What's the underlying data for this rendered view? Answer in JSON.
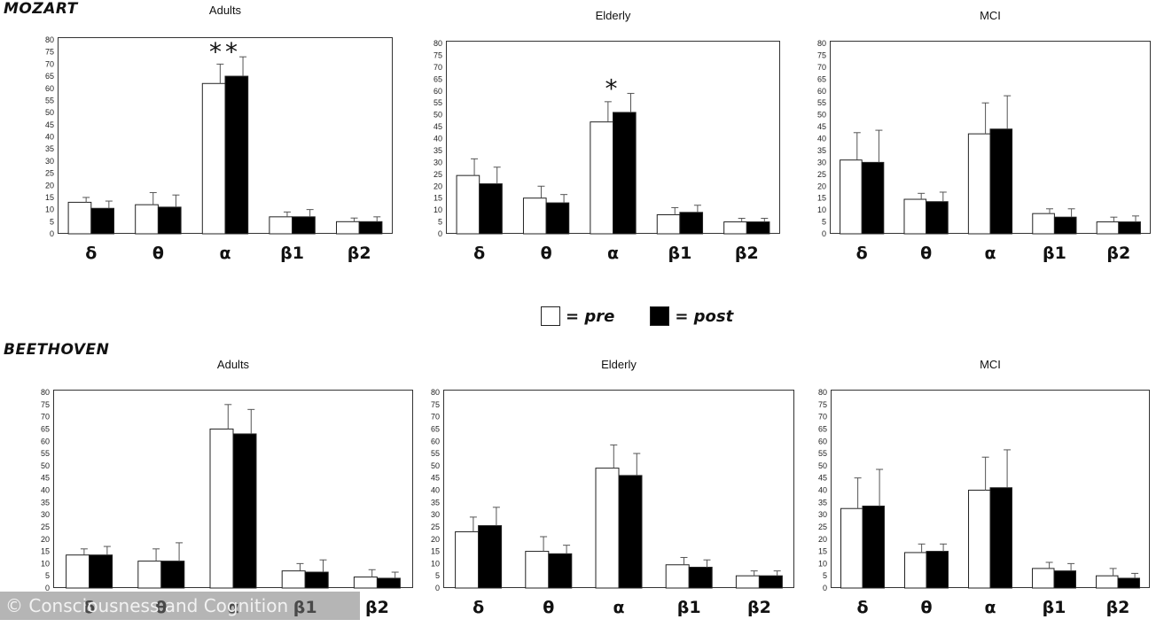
{
  "legend": {
    "pre": "= pre",
    "post": "= post"
  },
  "watermark": "© Consciousness and Cognition",
  "colors": {
    "pre": "#ffffff",
    "post": "#000000",
    "axis": "#333333"
  },
  "sections": [
    {
      "label": "MOZART"
    },
    {
      "label": "BEETHOVEN"
    }
  ],
  "chart_data": [
    {
      "type": "bar",
      "section": "MOZART",
      "title": "Adults",
      "categories": [
        "δ",
        "θ",
        "α",
        "β1",
        "β2"
      ],
      "ylim": [
        0,
        80
      ],
      "yticks": [
        "0",
        "5",
        "10",
        "15",
        "20",
        "25",
        "30",
        "35",
        "40",
        "45",
        "50",
        "55",
        "60",
        "65",
        "70",
        "75",
        "80"
      ],
      "series": [
        {
          "name": "pre",
          "values": [
            13,
            12,
            62,
            7,
            5
          ],
          "errors": [
            2,
            5,
            8,
            2,
            1.5
          ]
        },
        {
          "name": "post",
          "values": [
            10.5,
            11,
            65,
            7,
            5
          ],
          "errors": [
            3,
            5,
            8,
            3,
            2
          ]
        }
      ],
      "annotations": [
        {
          "category": "α",
          "text": "**"
        }
      ]
    },
    {
      "type": "bar",
      "section": "MOZART",
      "title": "Elderly",
      "categories": [
        "δ",
        "θ",
        "α",
        "β1",
        "β2"
      ],
      "ylim": [
        0,
        80
      ],
      "yticks": [
        "0",
        "5",
        "10",
        "15",
        "20",
        "25",
        "30",
        "35",
        "40",
        "45",
        "50",
        "55",
        "60",
        "65",
        "70",
        "75",
        "80"
      ],
      "series": [
        {
          "name": "pre",
          "values": [
            24.5,
            15,
            47,
            8,
            5
          ],
          "errors": [
            7,
            5,
            8.5,
            3,
            1.5
          ]
        },
        {
          "name": "post",
          "values": [
            21,
            13,
            51,
            9,
            5
          ],
          "errors": [
            7,
            3.5,
            8,
            3,
            1.5
          ]
        }
      ],
      "annotations": [
        {
          "category": "α",
          "text": "*"
        }
      ]
    },
    {
      "type": "bar",
      "section": "MOZART",
      "title": "MCI",
      "categories": [
        "δ",
        "θ",
        "α",
        "β1",
        "β2"
      ],
      "ylim": [
        0,
        80
      ],
      "yticks": [
        "0",
        "5",
        "10",
        "15",
        "20",
        "25",
        "30",
        "35",
        "40",
        "45",
        "50",
        "55",
        "60",
        "65",
        "70",
        "75",
        "80"
      ],
      "series": [
        {
          "name": "pre",
          "values": [
            31,
            14.5,
            42,
            8.5,
            5
          ],
          "errors": [
            11.5,
            2.5,
            13,
            2,
            2
          ]
        },
        {
          "name": "post",
          "values": [
            30,
            13.5,
            44,
            7,
            5
          ],
          "errors": [
            13.5,
            4,
            14,
            3.5,
            2.5
          ]
        }
      ],
      "annotations": []
    },
    {
      "type": "bar",
      "section": "BEETHOVEN",
      "title": "Adults",
      "categories": [
        "δ",
        "θ",
        "α",
        "β1",
        "β2"
      ],
      "ylim": [
        0,
        80
      ],
      "yticks": [
        "0",
        "5",
        "10",
        "15",
        "20",
        "25",
        "30",
        "35",
        "40",
        "45",
        "50",
        "55",
        "60",
        "65",
        "70",
        "75",
        "80"
      ],
      "series": [
        {
          "name": "pre",
          "values": [
            13.5,
            11,
            65,
            7,
            4.5
          ],
          "errors": [
            2.5,
            5,
            10,
            3,
            3
          ]
        },
        {
          "name": "post",
          "values": [
            13.5,
            11,
            63,
            6.5,
            4
          ],
          "errors": [
            3.5,
            7.5,
            10,
            5,
            2.5
          ]
        }
      ],
      "annotations": []
    },
    {
      "type": "bar",
      "section": "BEETHOVEN",
      "title": "Elderly",
      "categories": [
        "δ",
        "θ",
        "α",
        "β1",
        "β2"
      ],
      "ylim": [
        0,
        80
      ],
      "yticks": [
        "0",
        "5",
        "10",
        "15",
        "20",
        "25",
        "30",
        "35",
        "40",
        "45",
        "50",
        "55",
        "60",
        "65",
        "70",
        "75",
        "80"
      ],
      "series": [
        {
          "name": "pre",
          "values": [
            23,
            15,
            49,
            9.5,
            5
          ],
          "errors": [
            6,
            6,
            9.5,
            3,
            2
          ]
        },
        {
          "name": "post",
          "values": [
            25.5,
            14,
            46,
            8.5,
            5
          ],
          "errors": [
            7.5,
            3.5,
            9,
            3,
            2
          ]
        }
      ],
      "annotations": []
    },
    {
      "type": "bar",
      "section": "BEETHOVEN",
      "title": "MCI",
      "categories": [
        "δ",
        "θ",
        "α",
        "β1",
        "β2"
      ],
      "ylim": [
        0,
        80
      ],
      "yticks": [
        "0",
        "5",
        "10",
        "15",
        "20",
        "25",
        "30",
        "35",
        "40",
        "45",
        "50",
        "55",
        "60",
        "65",
        "70",
        "75",
        "80"
      ],
      "series": [
        {
          "name": "pre",
          "values": [
            32.5,
            14.5,
            40,
            8,
            5
          ],
          "errors": [
            12.5,
            3.5,
            13.5,
            2.5,
            3
          ]
        },
        {
          "name": "post",
          "values": [
            33.5,
            15,
            41,
            7,
            4
          ],
          "errors": [
            15,
            3,
            15.5,
            3,
            2
          ]
        }
      ],
      "annotations": []
    }
  ]
}
